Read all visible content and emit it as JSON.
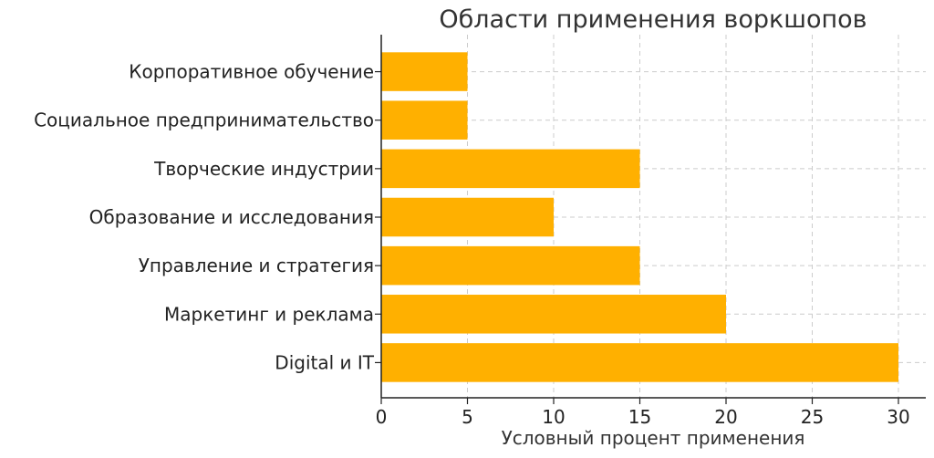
{
  "chart_data": {
    "type": "bar",
    "orientation": "horizontal",
    "title": "Области применения воркшопов",
    "xlabel": "Условный процент применения",
    "ylabel": "",
    "categories": [
      "Корпоративное обучение",
      "Социальное предпринимательство",
      "Творческие индустрии",
      "Образование и исследования",
      "Управление и стратегия",
      "Маркетинг и реклама",
      "Digital и IT"
    ],
    "values": [
      5,
      5,
      15,
      10,
      15,
      20,
      30
    ],
    "xlim": [
      0,
      30
    ],
    "xticks": [
      "0",
      "5",
      "10",
      "15",
      "20",
      "25",
      "30"
    ],
    "grid": true,
    "bar_color": "#FFB000"
  }
}
